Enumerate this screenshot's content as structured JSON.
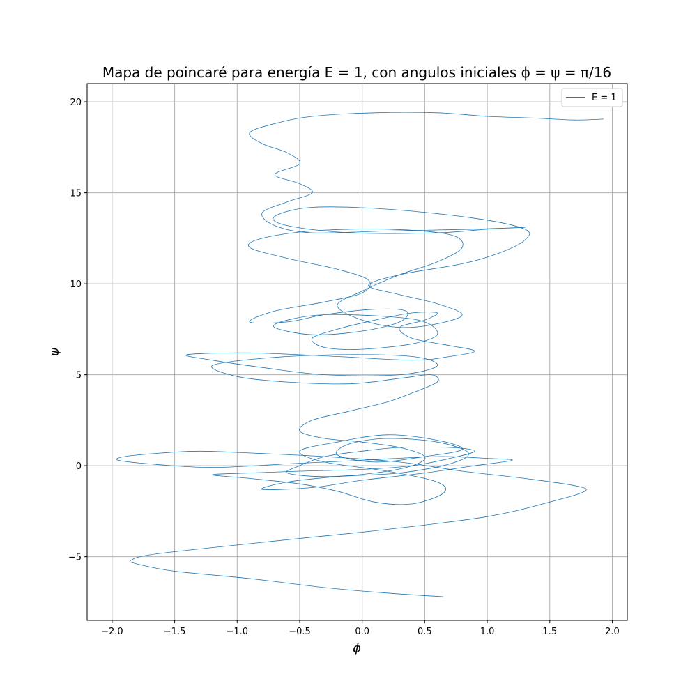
{
  "chart_data": {
    "type": "line",
    "title": "Mapa de poincaré para energía E = 1, con angulos iniciales ϕ = ψ = π/16",
    "xlabel": "ϕ",
    "ylabel": "ψ",
    "xlim": [
      -2.2,
      2.12
    ],
    "ylim": [
      -8.5,
      21.0
    ],
    "xticks": [
      -2.0,
      -1.5,
      -1.0,
      -0.5,
      0.0,
      0.5,
      1.0,
      1.5,
      2.0
    ],
    "xtick_labels": [
      "−2.0",
      "−1.5",
      "−1.0",
      "−0.5",
      "0.0",
      "0.5",
      "1.0",
      "1.5",
      "2.0"
    ],
    "yticks": [
      -5,
      0,
      5,
      10,
      15,
      20
    ],
    "ytick_labels": [
      "−5",
      "0",
      "5",
      "10",
      "15",
      "20"
    ],
    "grid": true,
    "legend": {
      "position": "top-right",
      "entries": [
        "E = 1"
      ]
    },
    "colors": {
      "series": "#1f77b4",
      "grid": "#b0b0b0",
      "axes": "#000000"
    },
    "series": [
      {
        "name": "E = 1",
        "points": [
          [
            0.65,
            -7.2
          ],
          [
            0.2,
            -7.0
          ],
          [
            -0.3,
            -6.7
          ],
          [
            -0.9,
            -6.2
          ],
          [
            -1.5,
            -5.8
          ],
          [
            -1.8,
            -5.4
          ],
          [
            -1.85,
            -5.2
          ],
          [
            -1.7,
            -4.9
          ],
          [
            -1.2,
            -4.5
          ],
          [
            -0.5,
            -4.0
          ],
          [
            0.2,
            -3.5
          ],
          [
            1.0,
            -2.8
          ],
          [
            1.5,
            -2.0
          ],
          [
            1.78,
            -1.4
          ],
          [
            1.7,
            -1.1
          ],
          [
            1.3,
            -0.7
          ],
          [
            0.8,
            -0.3
          ],
          [
            0.3,
            0.2
          ],
          [
            -0.3,
            0.5
          ],
          [
            -0.9,
            0.7
          ],
          [
            -1.3,
            0.8
          ],
          [
            -1.6,
            0.7
          ],
          [
            -1.9,
            0.5
          ],
          [
            -1.95,
            0.3
          ],
          [
            -1.7,
            0.1
          ],
          [
            -1.2,
            -0.1
          ],
          [
            -0.6,
            0.1
          ],
          [
            0.0,
            0.3
          ],
          [
            0.6,
            0.5
          ],
          [
            1.0,
            0.4
          ],
          [
            1.2,
            0.3
          ],
          [
            0.9,
            0.0
          ],
          [
            0.5,
            -0.4
          ],
          [
            0.0,
            -0.8
          ],
          [
            -0.4,
            -1.2
          ],
          [
            -0.8,
            -1.3
          ],
          [
            -0.6,
            -0.9
          ],
          [
            -0.2,
            -0.6
          ],
          [
            0.3,
            -0.4
          ],
          [
            0.7,
            0.1
          ],
          [
            0.85,
            0.7
          ],
          [
            0.6,
            1.3
          ],
          [
            0.2,
            1.5
          ],
          [
            -0.1,
            1.2
          ],
          [
            -0.2,
            0.6
          ],
          [
            0.1,
            0.2
          ],
          [
            0.5,
            0.5
          ],
          [
            0.8,
            0.9
          ],
          [
            0.6,
            1.4
          ],
          [
            0.2,
            1.7
          ],
          [
            -0.2,
            1.3
          ],
          [
            -0.5,
            0.8
          ],
          [
            -0.3,
            0.2
          ],
          [
            0.2,
            -0.3
          ],
          [
            0.6,
            -0.9
          ],
          [
            0.65,
            -1.5
          ],
          [
            0.4,
            -2.1
          ],
          [
            0.1,
            -2.0
          ],
          [
            -0.2,
            -1.4
          ],
          [
            -0.5,
            -1.0
          ],
          [
            -0.9,
            -0.7
          ],
          [
            -1.2,
            -0.5
          ],
          [
            -0.9,
            -0.4
          ],
          [
            -0.5,
            -0.3
          ],
          [
            0.0,
            -0.2
          ],
          [
            0.4,
            0.0
          ],
          [
            0.7,
            0.4
          ],
          [
            0.9,
            0.8
          ],
          [
            0.7,
            1.0
          ],
          [
            0.3,
            1.0
          ],
          [
            0.0,
            0.8
          ],
          [
            -0.3,
            0.5
          ],
          [
            -0.5,
            0.0
          ],
          [
            -0.6,
            -0.4
          ],
          [
            -0.3,
            -0.6
          ],
          [
            0.1,
            -0.4
          ],
          [
            0.4,
            0.0
          ],
          [
            0.5,
            0.5
          ],
          [
            0.3,
            1.0
          ],
          [
            0.0,
            1.3
          ],
          [
            -0.3,
            1.5
          ],
          [
            -0.5,
            1.9
          ],
          [
            -0.4,
            2.5
          ],
          [
            -0.1,
            3.0
          ],
          [
            0.2,
            3.5
          ],
          [
            0.4,
            4.0
          ],
          [
            0.6,
            4.6
          ],
          [
            0.55,
            5.0
          ],
          [
            0.3,
            4.8
          ],
          [
            -0.1,
            4.5
          ],
          [
            -0.6,
            4.6
          ],
          [
            -1.0,
            4.9
          ],
          [
            -1.2,
            5.5
          ],
          [
            -0.8,
            5.9
          ],
          [
            -0.2,
            6.1
          ],
          [
            0.4,
            6.0
          ],
          [
            0.6,
            5.5
          ],
          [
            0.3,
            5.0
          ],
          [
            -0.3,
            5.0
          ],
          [
            -0.8,
            5.4
          ],
          [
            -1.2,
            5.8
          ],
          [
            -1.4,
            6.1
          ],
          [
            -0.9,
            6.2
          ],
          [
            -0.2,
            6.0
          ],
          [
            0.4,
            5.8
          ],
          [
            0.7,
            6.0
          ],
          [
            0.9,
            6.3
          ],
          [
            0.7,
            6.6
          ],
          [
            0.4,
            7.0
          ],
          [
            0.3,
            7.6
          ],
          [
            0.5,
            8.0
          ],
          [
            0.6,
            8.4
          ],
          [
            0.4,
            8.4
          ],
          [
            0.1,
            8.0
          ],
          [
            -0.2,
            7.5
          ],
          [
            -0.4,
            7.0
          ],
          [
            -0.3,
            6.5
          ],
          [
            0.0,
            6.4
          ],
          [
            0.4,
            6.7
          ],
          [
            0.6,
            7.2
          ],
          [
            0.5,
            7.9
          ],
          [
            0.2,
            8.2
          ],
          [
            -0.3,
            8.3
          ],
          [
            -0.6,
            8.0
          ],
          [
            -0.7,
            7.6
          ],
          [
            -0.4,
            7.2
          ],
          [
            0.0,
            7.4
          ],
          [
            0.3,
            7.9
          ],
          [
            0.35,
            8.5
          ],
          [
            0.1,
            8.6
          ],
          [
            -0.3,
            8.3
          ],
          [
            -0.6,
            7.9
          ],
          [
            -0.9,
            7.9
          ],
          [
            -0.7,
            8.5
          ],
          [
            -0.3,
            9.0
          ],
          [
            0.0,
            9.5
          ],
          [
            0.05,
            10.2
          ],
          [
            -0.2,
            10.8
          ],
          [
            -0.6,
            11.4
          ],
          [
            -0.9,
            12.0
          ],
          [
            -0.8,
            12.5
          ],
          [
            -0.4,
            12.9
          ],
          [
            0.2,
            13.0
          ],
          [
            0.7,
            12.7
          ],
          [
            0.8,
            12.0
          ],
          [
            0.6,
            11.2
          ],
          [
            0.3,
            10.5
          ],
          [
            0.0,
            9.6
          ],
          [
            -0.2,
            8.8
          ],
          [
            0.0,
            8.0
          ],
          [
            0.3,
            7.6
          ],
          [
            0.6,
            7.8
          ],
          [
            0.8,
            8.3
          ],
          [
            0.6,
            8.9
          ],
          [
            0.3,
            9.4
          ],
          [
            0.05,
            9.9
          ],
          [
            0.3,
            10.5
          ],
          [
            0.8,
            11.1
          ],
          [
            1.1,
            11.7
          ],
          [
            1.3,
            12.4
          ],
          [
            1.3,
            13.0
          ],
          [
            0.9,
            13.6
          ],
          [
            0.2,
            14.1
          ],
          [
            -0.4,
            14.2
          ],
          [
            -0.7,
            13.7
          ],
          [
            -0.6,
            13.2
          ],
          [
            -0.1,
            12.8
          ],
          [
            0.6,
            12.8
          ],
          [
            1.0,
            13.0
          ],
          [
            1.3,
            13.1
          ],
          [
            0.9,
            13.0
          ],
          [
            0.2,
            12.9
          ],
          [
            -0.4,
            12.8
          ],
          [
            -0.7,
            13.2
          ],
          [
            -0.8,
            13.9
          ],
          [
            -0.6,
            14.5
          ],
          [
            -0.4,
            15.0
          ],
          [
            -0.5,
            15.5
          ],
          [
            -0.7,
            16.0
          ],
          [
            -0.5,
            16.6
          ],
          [
            -0.6,
            17.2
          ],
          [
            -0.8,
            17.7
          ],
          [
            -0.9,
            18.3
          ],
          [
            -0.7,
            18.8
          ],
          [
            -0.4,
            19.2
          ],
          [
            0.1,
            19.4
          ],
          [
            0.6,
            19.4
          ],
          [
            1.0,
            19.2
          ],
          [
            1.4,
            19.1
          ],
          [
            1.7,
            19.0
          ],
          [
            1.93,
            19.05
          ]
        ]
      }
    ]
  }
}
